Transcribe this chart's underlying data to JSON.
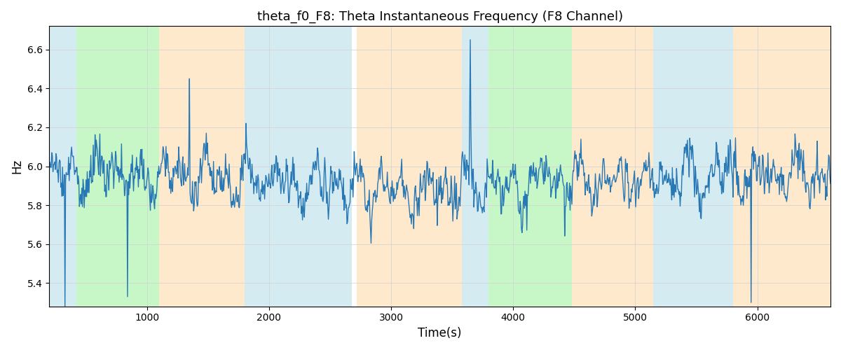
{
  "title": "theta_f0_F8: Theta Instantaneous Frequency (F8 Channel)",
  "xlabel": "Time(s)",
  "ylabel": "Hz",
  "xlim": [
    200,
    6600
  ],
  "ylim": [
    5.28,
    6.72
  ],
  "yticks": [
    5.4,
    5.6,
    5.8,
    6.0,
    6.2,
    6.4,
    6.6
  ],
  "xticks": [
    1000,
    2000,
    3000,
    4000,
    5000,
    6000
  ],
  "line_color": "#2878b5",
  "line_width": 1.0,
  "background_color": "#ffffff",
  "bands": [
    {
      "start": 200,
      "end": 420,
      "color": "#add8e6",
      "alpha": 0.5
    },
    {
      "start": 420,
      "end": 1100,
      "color": "#90ee90",
      "alpha": 0.5
    },
    {
      "start": 1100,
      "end": 1800,
      "color": "#ffd59b",
      "alpha": 0.5
    },
    {
      "start": 1800,
      "end": 2680,
      "color": "#add8e6",
      "alpha": 0.5
    },
    {
      "start": 2680,
      "end": 2720,
      "color": "#ffffff",
      "alpha": 1.0
    },
    {
      "start": 2720,
      "end": 3580,
      "color": "#ffd59b",
      "alpha": 0.5
    },
    {
      "start": 3580,
      "end": 3800,
      "color": "#add8e6",
      "alpha": 0.5
    },
    {
      "start": 3800,
      "end": 4480,
      "color": "#90ee90",
      "alpha": 0.5
    },
    {
      "start": 4480,
      "end": 5150,
      "color": "#ffd59b",
      "alpha": 0.5
    },
    {
      "start": 5150,
      "end": 5800,
      "color": "#add8e6",
      "alpha": 0.5
    },
    {
      "start": 5800,
      "end": 6600,
      "color": "#ffd59b",
      "alpha": 0.5
    }
  ],
  "seed": 37,
  "n_points": 1300,
  "t_start": 200,
  "t_end": 6600,
  "base_freq": 5.92,
  "noise_std": 0.1,
  "smooth_sigma": 1.5,
  "figsize": [
    12.0,
    5.0
  ],
  "dpi": 100
}
